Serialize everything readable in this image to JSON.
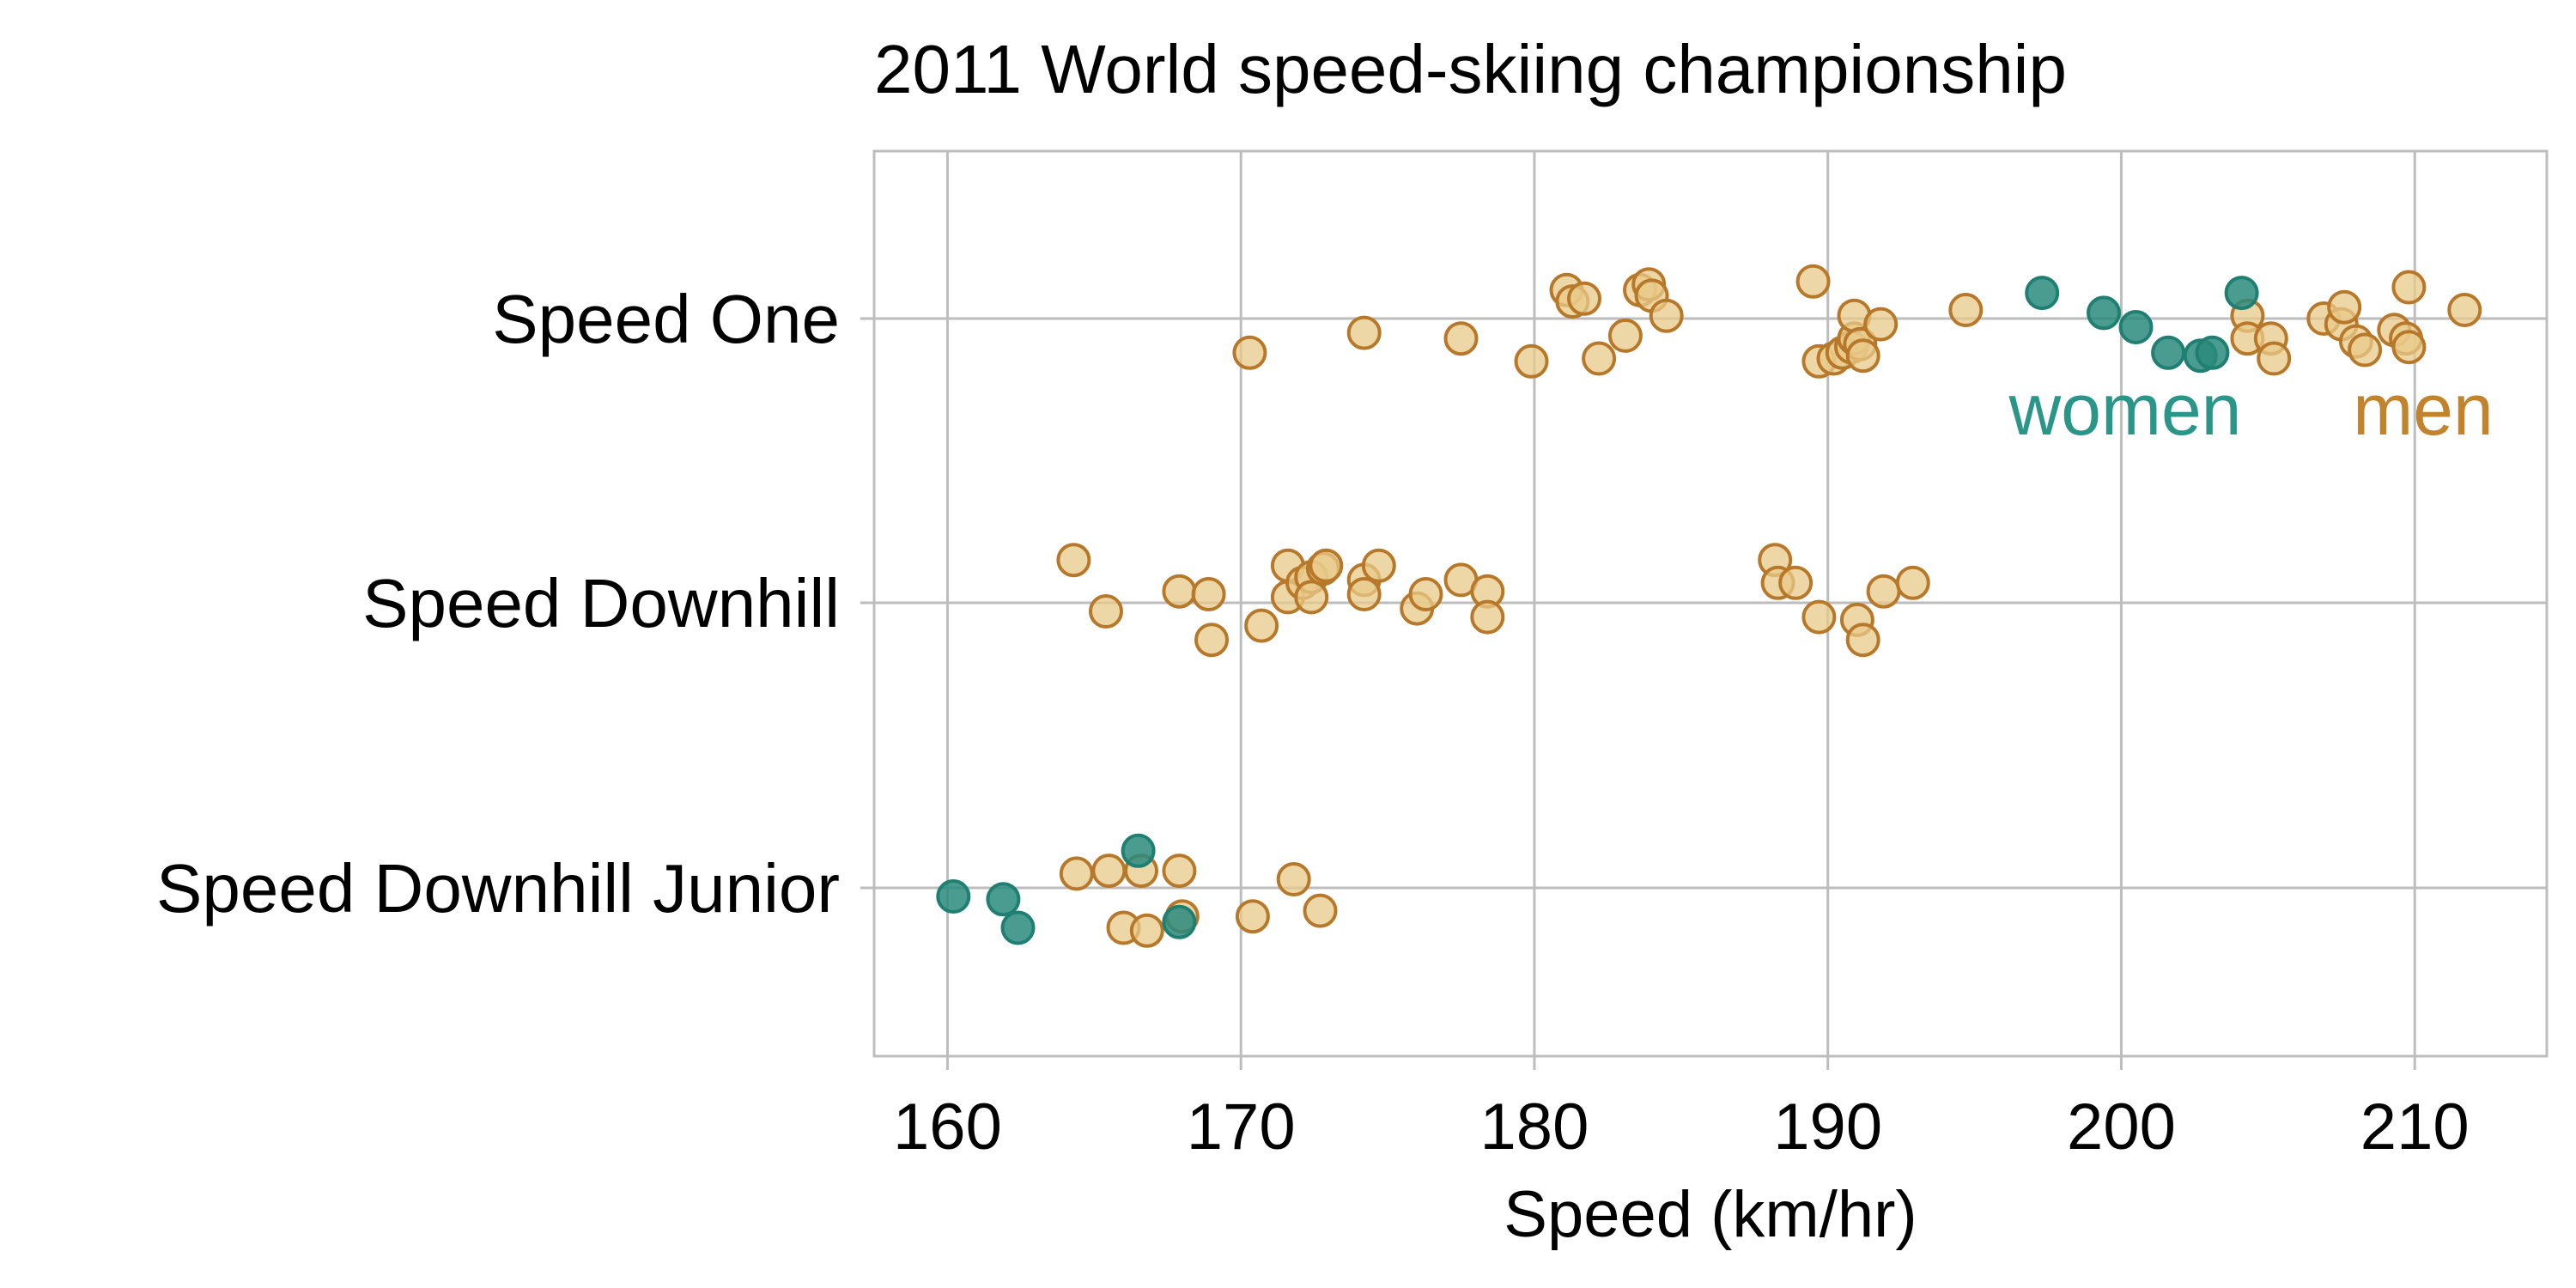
{
  "chart_data": {
    "type": "scatter",
    "title": "2011 World speed-skiing championship",
    "xlabel": "Speed (km/hr)",
    "ylabel": "",
    "xlim": [
      157.5,
      214.5
    ],
    "xticks": [
      160,
      170,
      180,
      190,
      200,
      210
    ],
    "categories": [
      "Speed Downhill Junior",
      "Speed Downhill",
      "Speed One"
    ],
    "grid": true,
    "legend": "direct labels inside plot, right side under Speed One row",
    "series": [
      {
        "name": "men",
        "color": "#b8782a",
        "fill": "#e8c98a",
        "points": [
          {
            "category": "Speed One",
            "x": 170.3,
            "offset": -0.12
          },
          {
            "category": "Speed One",
            "x": 174.2,
            "offset": -0.05
          },
          {
            "category": "Speed One",
            "x": 177.5,
            "offset": -0.07
          },
          {
            "category": "Speed One",
            "x": 179.9,
            "offset": -0.15
          },
          {
            "category": "Speed One",
            "x": 181.1,
            "offset": 0.1
          },
          {
            "category": "Speed One",
            "x": 181.3,
            "offset": 0.06
          },
          {
            "category": "Speed One",
            "x": 181.7,
            "offset": 0.07
          },
          {
            "category": "Speed One",
            "x": 182.2,
            "offset": -0.14
          },
          {
            "category": "Speed One",
            "x": 183.1,
            "offset": -0.06
          },
          {
            "category": "Speed One",
            "x": 183.6,
            "offset": 0.1
          },
          {
            "category": "Speed One",
            "x": 183.9,
            "offset": 0.12
          },
          {
            "category": "Speed One",
            "x": 184.0,
            "offset": 0.08
          },
          {
            "category": "Speed One",
            "x": 184.5,
            "offset": 0.01
          },
          {
            "category": "Speed One",
            "x": 189.5,
            "offset": 0.13
          },
          {
            "category": "Speed One",
            "x": 189.7,
            "offset": -0.15
          },
          {
            "category": "Speed One",
            "x": 190.2,
            "offset": -0.14
          },
          {
            "category": "Speed One",
            "x": 190.5,
            "offset": -0.12
          },
          {
            "category": "Speed One",
            "x": 190.8,
            "offset": -0.1
          },
          {
            "category": "Speed One",
            "x": 190.9,
            "offset": -0.07
          },
          {
            "category": "Speed One",
            "x": 190.9,
            "offset": 0.01
          },
          {
            "category": "Speed One",
            "x": 191.1,
            "offset": -0.09
          },
          {
            "category": "Speed One",
            "x": 191.2,
            "offset": -0.13
          },
          {
            "category": "Speed One",
            "x": 191.8,
            "offset": -0.02
          },
          {
            "category": "Speed One",
            "x": 194.7,
            "offset": 0.03
          },
          {
            "category": "Speed One",
            "x": 204.3,
            "offset": 0.01
          },
          {
            "category": "Speed One",
            "x": 204.3,
            "offset": -0.07
          },
          {
            "category": "Speed One",
            "x": 205.1,
            "offset": -0.07
          },
          {
            "category": "Speed One",
            "x": 205.2,
            "offset": -0.14
          },
          {
            "category": "Speed One",
            "x": 206.9,
            "offset": 0.0
          },
          {
            "category": "Speed One",
            "x": 207.5,
            "offset": -0.02
          },
          {
            "category": "Speed One",
            "x": 207.6,
            "offset": 0.04
          },
          {
            "category": "Speed One",
            "x": 208.0,
            "offset": -0.08
          },
          {
            "category": "Speed One",
            "x": 208.3,
            "offset": -0.11
          },
          {
            "category": "Speed One",
            "x": 209.3,
            "offset": -0.04
          },
          {
            "category": "Speed One",
            "x": 209.7,
            "offset": -0.07
          },
          {
            "category": "Speed One",
            "x": 209.8,
            "offset": -0.1
          },
          {
            "category": "Speed One",
            "x": 209.8,
            "offset": 0.11
          },
          {
            "category": "Speed One",
            "x": 211.7,
            "offset": 0.03
          },
          {
            "category": "Speed Downhill",
            "x": 164.3,
            "offset": 0.15
          },
          {
            "category": "Speed Downhill",
            "x": 165.4,
            "offset": -0.03
          },
          {
            "category": "Speed Downhill",
            "x": 167.9,
            "offset": 0.04
          },
          {
            "category": "Speed Downhill",
            "x": 168.9,
            "offset": 0.03
          },
          {
            "category": "Speed Downhill",
            "x": 169.0,
            "offset": -0.13
          },
          {
            "category": "Speed Downhill",
            "x": 170.7,
            "offset": -0.08
          },
          {
            "category": "Speed Downhill",
            "x": 171.6,
            "offset": 0.13
          },
          {
            "category": "Speed Downhill",
            "x": 171.6,
            "offset": 0.02
          },
          {
            "category": "Speed Downhill",
            "x": 172.1,
            "offset": 0.07
          },
          {
            "category": "Speed Downhill",
            "x": 172.4,
            "offset": 0.09
          },
          {
            "category": "Speed Downhill",
            "x": 172.4,
            "offset": 0.02
          },
          {
            "category": "Speed Downhill",
            "x": 172.8,
            "offset": 0.12
          },
          {
            "category": "Speed Downhill",
            "x": 172.9,
            "offset": 0.13
          },
          {
            "category": "Speed Downhill",
            "x": 174.2,
            "offset": 0.08
          },
          {
            "category": "Speed Downhill",
            "x": 174.2,
            "offset": 0.03
          },
          {
            "category": "Speed Downhill",
            "x": 174.7,
            "offset": 0.13
          },
          {
            "category": "Speed Downhill",
            "x": 176.0,
            "offset": -0.02
          },
          {
            "category": "Speed Downhill",
            "x": 176.3,
            "offset": 0.03
          },
          {
            "category": "Speed Downhill",
            "x": 177.5,
            "offset": 0.08
          },
          {
            "category": "Speed Downhill",
            "x": 178.4,
            "offset": 0.04
          },
          {
            "category": "Speed Downhill",
            "x": 178.4,
            "offset": -0.05
          },
          {
            "category": "Speed Downhill",
            "x": 188.2,
            "offset": 0.15
          },
          {
            "category": "Speed Downhill",
            "x": 188.3,
            "offset": 0.07
          },
          {
            "category": "Speed Downhill",
            "x": 188.9,
            "offset": 0.07
          },
          {
            "category": "Speed Downhill",
            "x": 189.7,
            "offset": -0.05
          },
          {
            "category": "Speed Downhill",
            "x": 191.0,
            "offset": -0.06
          },
          {
            "category": "Speed Downhill",
            "x": 191.2,
            "offset": -0.13
          },
          {
            "category": "Speed Downhill",
            "x": 191.9,
            "offset": 0.04
          },
          {
            "category": "Speed Downhill",
            "x": 192.9,
            "offset": 0.07
          },
          {
            "category": "Speed Downhill Junior",
            "x": 164.4,
            "offset": 0.05
          },
          {
            "category": "Speed Downhill Junior",
            "x": 165.5,
            "offset": 0.06
          },
          {
            "category": "Speed Downhill Junior",
            "x": 166.0,
            "offset": -0.14
          },
          {
            "category": "Speed Downhill Junior",
            "x": 166.6,
            "offset": 0.06
          },
          {
            "category": "Speed Downhill Junior",
            "x": 166.8,
            "offset": -0.15
          },
          {
            "category": "Speed Downhill Junior",
            "x": 167.9,
            "offset": 0.06
          },
          {
            "category": "Speed Downhill Junior",
            "x": 168.0,
            "offset": -0.1
          },
          {
            "category": "Speed Downhill Junior",
            "x": 170.4,
            "offset": -0.1
          },
          {
            "category": "Speed Downhill Junior",
            "x": 171.8,
            "offset": 0.03
          },
          {
            "category": "Speed Downhill Junior",
            "x": 172.7,
            "offset": -0.08
          }
        ]
      },
      {
        "name": "women",
        "color": "#1e7f72",
        "fill": "#2a8a7c",
        "points": [
          {
            "category": "Speed One",
            "x": 197.3,
            "offset": 0.09
          },
          {
            "category": "Speed One",
            "x": 199.4,
            "offset": 0.02
          },
          {
            "category": "Speed One",
            "x": 200.5,
            "offset": -0.03
          },
          {
            "category": "Speed One",
            "x": 201.6,
            "offset": -0.12
          },
          {
            "category": "Speed One",
            "x": 202.7,
            "offset": -0.13
          },
          {
            "category": "Speed One",
            "x": 203.1,
            "offset": -0.12
          },
          {
            "category": "Speed One",
            "x": 204.1,
            "offset": 0.09
          },
          {
            "category": "Speed Downhill Junior",
            "x": 160.2,
            "offset": -0.03
          },
          {
            "category": "Speed Downhill Junior",
            "x": 161.9,
            "offset": -0.04
          },
          {
            "category": "Speed Downhill Junior",
            "x": 162.4,
            "offset": -0.14
          },
          {
            "category": "Speed Downhill Junior",
            "x": 166.5,
            "offset": 0.13
          },
          {
            "category": "Speed Downhill Junior",
            "x": 167.9,
            "offset": -0.12
          }
        ]
      }
    ]
  }
}
